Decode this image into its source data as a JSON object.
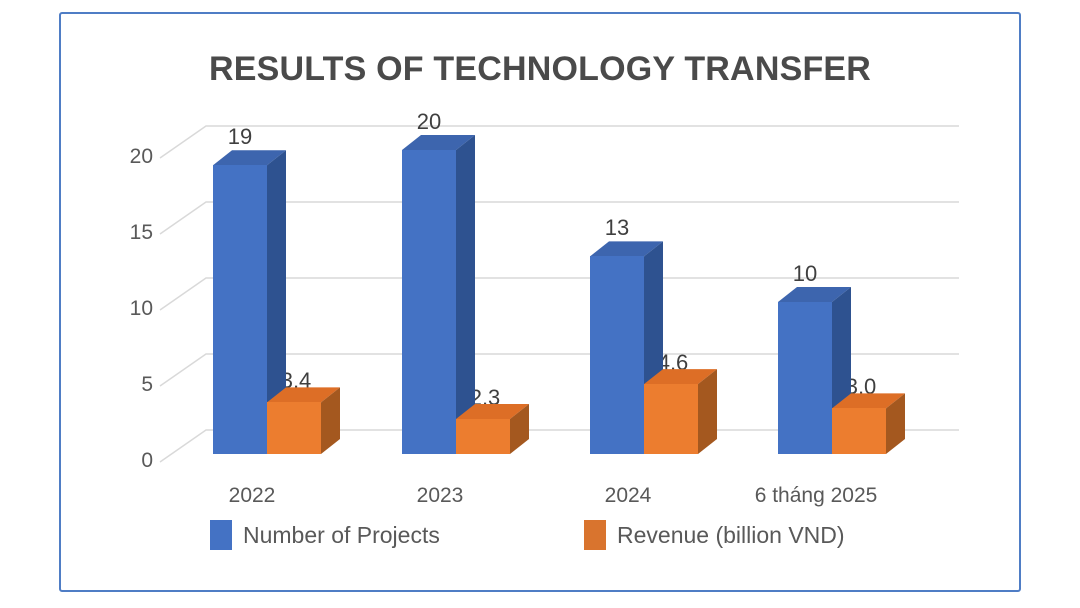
{
  "title": "RESULTS OF TECHNOLOGY TRANSFER",
  "chart_data": {
    "type": "bar",
    "style": "3d-clustered-column",
    "title": "RESULTS OF TECHNOLOGY TRANSFER",
    "categories": [
      "2022",
      "2023",
      "2024",
      "6 tháng 2025"
    ],
    "series": [
      {
        "name": "Number of Projects",
        "values": [
          19,
          20,
          13,
          10
        ],
        "labels": [
          "19",
          "20",
          "13",
          "10"
        ],
        "color_front": "#4472c4",
        "color_top": "#3d65ae",
        "color_side": "#2e5290"
      },
      {
        "name": "Revenue (billion VND)",
        "values": [
          3.4,
          2.3,
          4.6,
          3.0
        ],
        "labels": [
          "3,4",
          "2,3",
          "4,6",
          "3,0"
        ],
        "color_front": "#ec7d2f",
        "color_top": "#dd6e26",
        "color_side": "#a4581f"
      }
    ],
    "yticks": [
      0,
      5,
      10,
      15,
      20
    ],
    "ylim": [
      0,
      20
    ],
    "grid": true,
    "gridline_color": "#d9d9d9",
    "legend_position": "bottom"
  },
  "legend": {
    "items": [
      {
        "label": "Number of Projects",
        "color": "#4472c4"
      },
      {
        "label": "Revenue (billion VND)",
        "color": "#d9742e"
      }
    ]
  }
}
